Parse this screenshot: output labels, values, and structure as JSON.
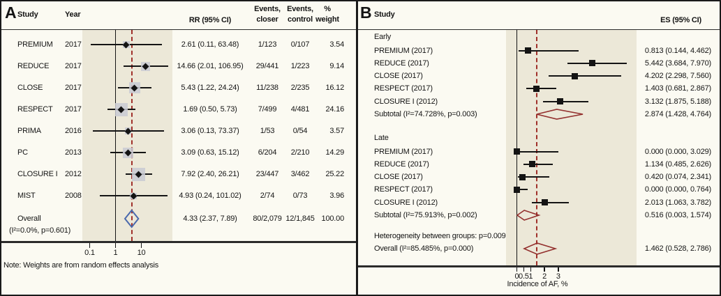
{
  "colors": {
    "background": "#fbfaf2",
    "band": "#ece8d8",
    "line_black": "#141414",
    "rule_dark": "#2b2b2b",
    "dashed_red": "#a0302a",
    "diamond_blue": "#4a69ad",
    "diamond_red": "#93302e",
    "weight_box": "#c9cad3"
  },
  "chart_data": [
    {
      "panel": "A",
      "type": "scatter",
      "subtype": "forest-plot",
      "headers": {
        "study": "Study",
        "year": "Year",
        "rr": "RR (95% CI)",
        "events_closure": "Events,\ncloser",
        "events_control": "Events,\ncontrol",
        "weight": "%\nweight"
      },
      "x_scale": "log10",
      "x_ticks": [
        0.1,
        1,
        10
      ],
      "ref_line": 1,
      "pooled_line": 4.33,
      "studies": [
        {
          "study": "PREMIUM",
          "year": "2017",
          "est": 2.61,
          "lo": 0.11,
          "hi": 63.48,
          "ci_label": "2.61 (0.11, 63.48)",
          "events_closure": "1/123",
          "events_control": "0/107",
          "weight": 3.54,
          "weight_label": "3.54"
        },
        {
          "study": "REDUCE",
          "year": "2017",
          "est": 14.66,
          "lo": 2.01,
          "hi": 106.95,
          "ci_label": "14.66 (2.01, 106.95)",
          "events_closure": "29/441",
          "events_control": "1/223",
          "weight": 9.14,
          "weight_label": "9.14"
        },
        {
          "study": "CLOSE",
          "year": "2017",
          "est": 5.43,
          "lo": 1.22,
          "hi": 24.24,
          "ci_label": "5.43 (1.22, 24.24)",
          "events_closure": "11/238",
          "events_control": "2/235",
          "weight": 16.12,
          "weight_label": "16.12"
        },
        {
          "study": "RESPECT",
          "year": "2017",
          "est": 1.69,
          "lo": 0.5,
          "hi": 5.73,
          "ci_label": "1.69 (0.50, 5.73)",
          "events_closure": "7/499",
          "events_control": "4/481",
          "weight": 24.16,
          "weight_label": "24.16"
        },
        {
          "study": "PRIMA",
          "year": "2016",
          "est": 3.06,
          "lo": 0.13,
          "hi": 73.37,
          "ci_label": "3.06 (0.13, 73.37)",
          "events_closure": "1/53",
          "events_control": "0/54",
          "weight": 3.57,
          "weight_label": "3.57"
        },
        {
          "study": "PC",
          "year": "2013",
          "est": 3.09,
          "lo": 0.63,
          "hi": 15.12,
          "ci_label": "3.09 (0.63, 15.12)",
          "events_closure": "6/204",
          "events_control": "2/210",
          "weight": 14.29,
          "weight_label": "14.29"
        },
        {
          "study": "CLOSURE I",
          "year": "2012",
          "est": 7.92,
          "lo": 2.4,
          "hi": 26.21,
          "ci_label": "7.92 (2.40, 26.21)",
          "events_closure": "23/447",
          "events_control": "3/462",
          "weight": 25.22,
          "weight_label": "25.22"
        },
        {
          "study": "MIST",
          "year": "2008",
          "est": 4.93,
          "lo": 0.24,
          "hi": 101.02,
          "ci_label": "4.93 (0.24, 101.02)",
          "events_closure": "2/74",
          "events_control": "0/73",
          "weight": 3.96,
          "weight_label": "3.96"
        }
      ],
      "overall": {
        "label_line1": "Overall",
        "label_line2": "(I²=0.0%, p=0.601)",
        "est": 4.33,
        "lo": 2.37,
        "hi": 7.89,
        "ci_label": "4.33 (2.37, 7.89)",
        "events_closure": "80/2,079",
        "events_control": "12/1,845",
        "weight_label": "100.00"
      },
      "note": "Note: Weights are from random effects analysis"
    },
    {
      "panel": "B",
      "type": "scatter",
      "subtype": "forest-plot",
      "headers": {
        "study": "Study",
        "es": "ES (95% CI)"
      },
      "x_scale": "linear",
      "x_ticks": [
        0,
        0.5,
        1,
        2,
        3
      ],
      "x_tick_labels": [
        "0",
        "0.5",
        "1",
        "2",
        "3"
      ],
      "xlabel": "Incidence of AF, %",
      "ref_line": 0,
      "pooled_line": 1.462,
      "groups": [
        {
          "name": "Early",
          "studies": [
            {
              "study": "PREMIUM (2017)",
              "est": 0.813,
              "lo": 0.144,
              "hi": 4.462,
              "ci_label": "0.813 (0.144, 4.462)"
            },
            {
              "study": "REDUCE (2017)",
              "est": 5.442,
              "lo": 3.684,
              "hi": 7.97,
              "ci_label": "5.442 (3.684, 7.970)"
            },
            {
              "study": "CLOSE (2017)",
              "est": 4.202,
              "lo": 2.298,
              "hi": 7.56,
              "ci_label": "4.202 (2.298, 7.560)"
            },
            {
              "study": "RESPECT (2017)",
              "est": 1.403,
              "lo": 0.681,
              "hi": 2.867,
              "ci_label": "1.403 (0.681, 2.867)"
            },
            {
              "study": "CLOSURE I (2012)",
              "est": 3.132,
              "lo": 1.875,
              "hi": 5.188,
              "ci_label": "3.132 (1.875, 5.188)"
            }
          ],
          "subtotal": {
            "label": "Subtotal (I²=74.728%, p=0.003)",
            "est": 2.874,
            "lo": 1.428,
            "hi": 4.764,
            "ci_label": "2.874 (1.428, 4.764)"
          }
        },
        {
          "name": "Late",
          "studies": [
            {
              "study": "PREMIUM (2017)",
              "est": 0.0,
              "lo": 0.0,
              "hi": 3.029,
              "ci_label": "0.000 (0.000, 3.029)"
            },
            {
              "study": "REDUCE (2017)",
              "est": 1.134,
              "lo": 0.485,
              "hi": 2.626,
              "ci_label": "1.134 (0.485, 2.626)"
            },
            {
              "study": "CLOSE (2017)",
              "est": 0.42,
              "lo": 0.074,
              "hi": 2.341,
              "ci_label": "0.420 (0.074, 2.341)"
            },
            {
              "study": "RESPECT (2017)",
              "est": 0.0,
              "lo": 0.0,
              "hi": 0.764,
              "ci_label": "0.000 (0.000, 0.764)"
            },
            {
              "study": "CLOSURE I (2012)",
              "est": 2.013,
              "lo": 1.063,
              "hi": 3.782,
              "ci_label": "2.013 (1.063, 3.782)"
            }
          ],
          "subtotal": {
            "label": "Subtotal (I²=75.913%, p=0.002)",
            "est": 0.516,
            "lo": 0.003,
            "hi": 1.574,
            "ci_label": "0.516 (0.003, 1.574)"
          }
        }
      ],
      "heterogeneity": "Heterogeneity between groups: p=0.009",
      "overall": {
        "label": "Overall (I²=85.485%, p=0.000)",
        "est": 1.462,
        "lo": 0.528,
        "hi": 2.786,
        "ci_label": "1.462 (0.528, 2.786)"
      }
    }
  ]
}
